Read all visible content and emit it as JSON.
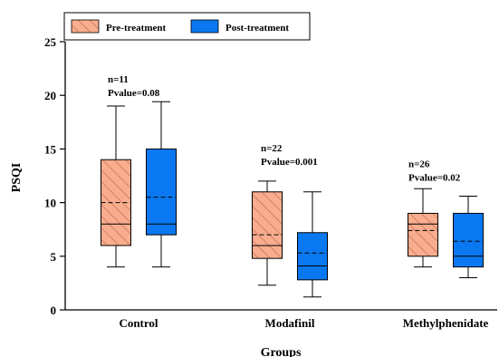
{
  "chart_data": {
    "type": "boxplot",
    "xlabel": "Groups",
    "ylabel": "PSQI",
    "ylim": [
      0,
      25
    ],
    "yticks": [
      0,
      5,
      10,
      15,
      20,
      25
    ],
    "categories": [
      "Control",
      "Modafinil",
      "Methylphenidate"
    ],
    "legend": {
      "position": "top-left",
      "entries": [
        {
          "label": "Pre-treatment",
          "color": "#f8ae8e",
          "hatch": "diagonal"
        },
        {
          "label": "Post-treatment",
          "color": "#0a78f0",
          "hatch": "none"
        }
      ]
    },
    "annotations": [
      {
        "category": "Control",
        "n_text": "n=11",
        "p_text": "Pvalue=0.08",
        "y": 21.2
      },
      {
        "category": "Modafinil",
        "n_text": "n=22",
        "p_text": "Pvalue=0.001",
        "y": 14.8
      },
      {
        "category": "Methylphenidate",
        "n_text": "n=26",
        "p_text": "Pvalue=0.02",
        "y": 13.3
      }
    ],
    "series": [
      {
        "name": "Pre-treatment",
        "boxes": [
          {
            "category": "Control",
            "min": 4,
            "q1": 6,
            "median": 8,
            "mean": 10,
            "q3": 14,
            "max": 19
          },
          {
            "category": "Modafinil",
            "min": 2.3,
            "q1": 4.8,
            "median": 6,
            "mean": 7,
            "q3": 11,
            "max": 12
          },
          {
            "category": "Methylphenidate",
            "min": 4,
            "q1": 5,
            "median": 8,
            "mean": 7.4,
            "q3": 9,
            "max": 11.3
          }
        ]
      },
      {
        "name": "Post-treatment",
        "boxes": [
          {
            "category": "Control",
            "min": 4,
            "q1": 7,
            "median": 8,
            "mean": 10.5,
            "q3": 15,
            "max": 19.4
          },
          {
            "category": "Modafinil",
            "min": 1.2,
            "q1": 2.8,
            "median": 4.1,
            "mean": 5.3,
            "q3": 7.2,
            "max": 11
          },
          {
            "category": "Methylphenidate",
            "min": 3,
            "q1": 4,
            "median": 5,
            "mean": 6.4,
            "q3": 9,
            "max": 10.6
          }
        ]
      }
    ]
  }
}
